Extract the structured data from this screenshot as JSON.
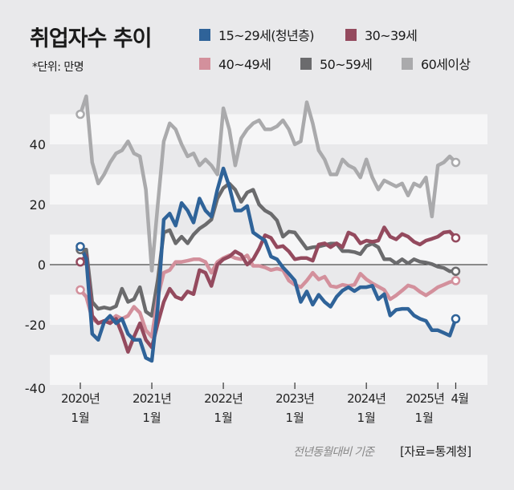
{
  "header": {
    "title": "취업자수 추이",
    "unit": "*단위: 만명"
  },
  "footer": {
    "note": "전년동월대비 기준",
    "source": "[자료=통계청]"
  },
  "chart_data": {
    "type": "line",
    "title": "취업자수 추이",
    "ylim": [
      -40,
      60
    ],
    "yticks": [
      "40",
      "20",
      "0",
      "-20",
      "-40"
    ],
    "ytick_values": [
      40,
      20,
      0,
      -20,
      -40
    ],
    "xticks": [
      {
        "line1": "2020년",
        "line2": "1월",
        "month_index": 0
      },
      {
        "line1": "2021년",
        "line2": "1월",
        "month_index": 12
      },
      {
        "line1": "2022년",
        "line2": "1월",
        "month_index": 24
      },
      {
        "line1": "2023년",
        "line2": "1월",
        "month_index": 36
      },
      {
        "line1": "2024년",
        "line2": "1월",
        "month_index": 48
      },
      {
        "line1": "2025년",
        "line2": "1월",
        "month_index": 60
      },
      {
        "line1": "4월",
        "line2": "",
        "month_index": 63
      }
    ],
    "x_range": "2020-01 to 2025-04 (monthly)",
    "grid": "alternating horizontal bands every 10, zero line",
    "legend_position": "top",
    "series": [
      {
        "name": "15~29세(청년층)",
        "color": "#2f6399",
        "values": [
          6,
          2,
          -23,
          -25,
          -19,
          -17,
          -19.5,
          -18,
          -23,
          -25,
          -25,
          -31,
          -32,
          -14,
          15,
          17,
          13,
          20.5,
          18,
          14,
          22,
          18,
          16,
          25,
          32,
          26,
          18,
          18,
          19.5,
          10.7,
          9.3,
          8,
          2.7,
          1.8,
          -0.9,
          -3,
          -5.3,
          -12.4,
          -8.9,
          -13.3,
          -10,
          -12.4,
          -14,
          -10.7,
          -8.6,
          -7.5,
          -8.8,
          -7.5,
          -7.5,
          -7,
          -11.5,
          -9.8,
          -16.9,
          -15,
          -14.7,
          -14.7,
          -16.9,
          -18,
          -18.7,
          -21.8,
          -21.8,
          -22.7,
          -23.6,
          -18
        ]
      },
      {
        "name": "30~39세",
        "color": "#944a5e",
        "values": [
          0.9,
          3,
          -17,
          -19.5,
          -18.7,
          -19.5,
          -18,
          -23,
          -29,
          -24,
          -19.5,
          -25,
          -27.5,
          -19.5,
          -12.4,
          -8,
          -10.7,
          -11.5,
          -8.9,
          -9.8,
          -1.8,
          -2.7,
          -7.1,
          0,
          1.8,
          2.7,
          4.4,
          3.3,
          0,
          1.8,
          5.3,
          9.8,
          8.9,
          5.8,
          6.2,
          4.4,
          1.8,
          2.2,
          2.2,
          1.3,
          6.7,
          7.1,
          5.8,
          7.1,
          5.8,
          10.7,
          9.8,
          7.1,
          8,
          7.6,
          8,
          12.4,
          9.3,
          8.4,
          10.2,
          9.3,
          7.6,
          6.7,
          8,
          8.6,
          9.3,
          10.7,
          11,
          8.9
        ]
      },
      {
        "name": "40~49세",
        "color": "#d3909c",
        "values": [
          -8.4,
          -10.7,
          -18,
          -19.5,
          -18.7,
          -18.7,
          -17,
          -18,
          -17,
          -14,
          -16,
          -21.8,
          -24,
          -10.7,
          -2.7,
          -1.8,
          0.9,
          0.9,
          1.3,
          1.8,
          1.8,
          0.9,
          -2.7,
          0.9,
          2.2,
          3.1,
          2.2,
          1.8,
          3.1,
          -0.4,
          -0.4,
          -0.9,
          -1.8,
          -1.3,
          -1.8,
          -5.3,
          -6.7,
          -7.5,
          -5.3,
          -2.7,
          -4.9,
          -4,
          -7.1,
          -7.5,
          -6.7,
          -7.1,
          -6.7,
          -3,
          -4.9,
          -6.2,
          -7.3,
          -8.4,
          -11.5,
          -10.2,
          -8.6,
          -6.9,
          -7.5,
          -9,
          -10.2,
          -8.9,
          -7.5,
          -6.7,
          -5.8,
          -5.3
        ]
      },
      {
        "name": "50~59세",
        "color": "#6b6b6d",
        "values": [
          5,
          5,
          -12.4,
          -14.7,
          -14.2,
          -14.7,
          -13.8,
          -8,
          -12.4,
          -11.5,
          -7.5,
          -15.6,
          -17,
          -5,
          10.7,
          11.5,
          7.1,
          9.3,
          7.1,
          10,
          12,
          13.3,
          15,
          22,
          25.5,
          27,
          24.9,
          20.9,
          24,
          24.9,
          20,
          18,
          16.9,
          14.7,
          9.3,
          11,
          10.7,
          8,
          5.3,
          5.8,
          6,
          6.5,
          7,
          7,
          4.5,
          4.5,
          4.2,
          3.5,
          6.2,
          7,
          5.8,
          1.8,
          1.8,
          0.4,
          1.8,
          0.4,
          1.8,
          1,
          0.7,
          0.2,
          -0.7,
          -1.1,
          -2.2,
          -2.2
        ]
      },
      {
        "name": "60세이상",
        "color": "#aaaaac",
        "values": [
          50,
          56,
          34,
          27,
          30,
          34,
          37,
          38,
          41,
          37,
          36,
          25,
          -2,
          20,
          41,
          47,
          45,
          40,
          36,
          37,
          33,
          35,
          33,
          30,
          52,
          45,
          33,
          42,
          45,
          47,
          48,
          45,
          45,
          46,
          48,
          45,
          40,
          41,
          54,
          47,
          38,
          35,
          30,
          30,
          35,
          33,
          32,
          29,
          35,
          29,
          25,
          28,
          27,
          26,
          27,
          23,
          27,
          26,
          29,
          16,
          33,
          34,
          36,
          34
        ]
      }
    ]
  }
}
